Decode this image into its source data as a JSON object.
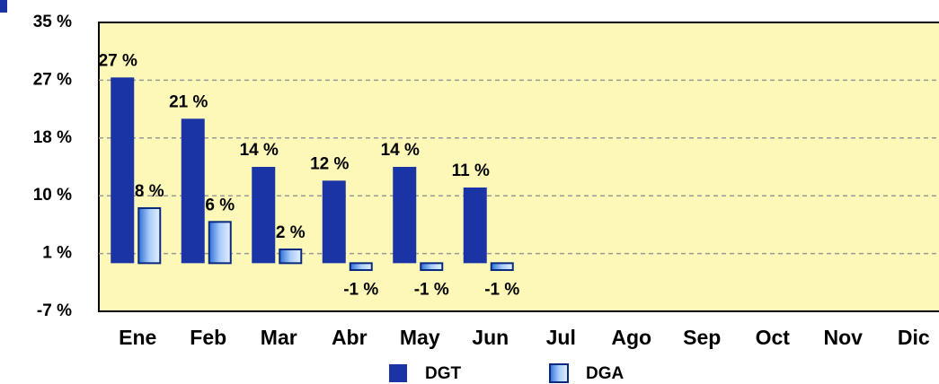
{
  "chart_data": {
    "type": "bar",
    "categories": [
      "Ene",
      "Feb",
      "Mar",
      "Abr",
      "May",
      "Jun",
      "Jul",
      "Ago",
      "Sep",
      "Oct",
      "Nov",
      "Dic"
    ],
    "series": [
      {
        "name": "DGT",
        "color": "#1a34a6",
        "values": [
          27,
          21,
          14,
          12,
          14,
          11,
          null,
          null,
          null,
          null,
          null,
          null
        ],
        "value_labels": [
          "27 %",
          "21 %",
          "14 %",
          "12 %",
          "14 %",
          "11 %",
          null,
          null,
          null,
          null,
          null,
          null
        ]
      },
      {
        "name": "DGA",
        "color": "#5b9cf0",
        "values": [
          8,
          6,
          2,
          -1,
          -1,
          -1,
          null,
          null,
          null,
          null,
          null,
          null
        ],
        "value_labels": [
          "8 %",
          "6 %",
          "2 %",
          "-1 %",
          "-1 %",
          "-1 %",
          null,
          null,
          null,
          null,
          null,
          null
        ]
      }
    ],
    "ylim": [
      -7,
      35
    ],
    "yticks": [
      {
        "value": -7,
        "label": "-7 %"
      },
      {
        "value": 1.4,
        "label": "1 %"
      },
      {
        "value": 9.8,
        "label": "10 %"
      },
      {
        "value": 18.2,
        "label": "18 %"
      },
      {
        "value": 26.6,
        "label": "27 %"
      },
      {
        "value": 35,
        "label": "35 %"
      }
    ],
    "grid": true,
    "legend": "bottom"
  }
}
